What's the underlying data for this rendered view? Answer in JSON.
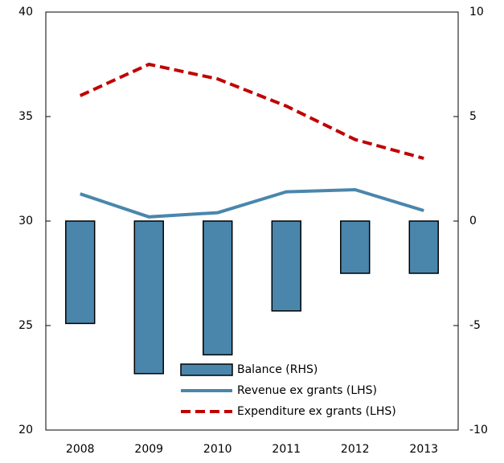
{
  "chart_data": {
    "type": "bar-line",
    "categories": [
      "2008",
      "2009",
      "2010",
      "2011",
      "2012",
      "2013"
    ],
    "series": [
      {
        "name": "Balance (RHS)",
        "type": "bar",
        "axis": "y2",
        "color": "#4a86ac",
        "values": [
          -4.9,
          -7.3,
          -6.4,
          -4.3,
          -2.5,
          -2.5
        ]
      },
      {
        "name": "Revenue ex grants (LHS)",
        "type": "line",
        "color": "#4a86ac",
        "values": [
          31.3,
          30.2,
          30.4,
          31.4,
          31.5,
          30.5
        ]
      },
      {
        "name": "Expenditure ex grants (LHS)",
        "type": "line",
        "dashed": true,
        "color": "#c00000",
        "values": [
          36.0,
          37.5,
          36.8,
          35.5,
          33.9,
          33.0
        ]
      }
    ],
    "ylim": [
      20,
      40
    ],
    "yticks": [
      20,
      25,
      30,
      35,
      40
    ],
    "y2lim": [
      -10,
      10
    ],
    "y2ticks": [
      -10,
      -5,
      0,
      5,
      10
    ],
    "grid": false,
    "legend": "bottom"
  }
}
